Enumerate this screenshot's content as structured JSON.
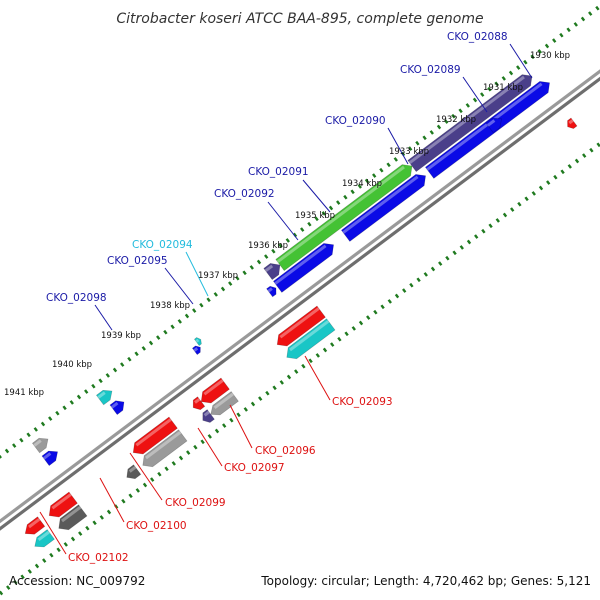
{
  "title": "Citrobacter koseri ATCC BAA-895, complete genome",
  "footer": {
    "accession": "Accession: NC_009792",
    "topology": "Topology: circular; Length: 4,720,462 bp; Genes: 5,121"
  },
  "colors": {
    "backbone": "#8c8c8c",
    "tick": "#1f7a1f",
    "red": "#ee1111",
    "blue": "#0a0ae6",
    "navy": "#4a3f8a",
    "green": "#44c234",
    "cyan": "#19c6c6",
    "gray": "#9a9a9a",
    "darkgray": "#5a5a5a",
    "label_blue": "#1a1aa6",
    "label_red": "#dd1111",
    "label_cyan": "#22bbdd"
  },
  "ticks": [
    "1930 kbp",
    "1931 kbp",
    "1932 kbp",
    "1933 kbp",
    "1934 kbp",
    "1935 kbp",
    "1936 kbp",
    "1937 kbp",
    "1938 kbp",
    "1939 kbp",
    "1940 kbp",
    "1941 kbp"
  ],
  "gene_labels": {
    "CKO_02088": "CKO_02088",
    "CKO_02089": "CKO_02089",
    "CKO_02090": "CKO_02090",
    "CKO_02091": "CKO_02091",
    "CKO_02092": "CKO_02092",
    "CKO_02094": "CKO_02094",
    "CKO_02095": "CKO_02095",
    "CKO_02098": "CKO_02098",
    "CKO_02093": "CKO_02093",
    "CKO_02096": "CKO_02096",
    "CKO_02097": "CKO_02097",
    "CKO_02099": "CKO_02099",
    "CKO_02100": "CKO_02100",
    "CKO_02102": "CKO_02102"
  }
}
